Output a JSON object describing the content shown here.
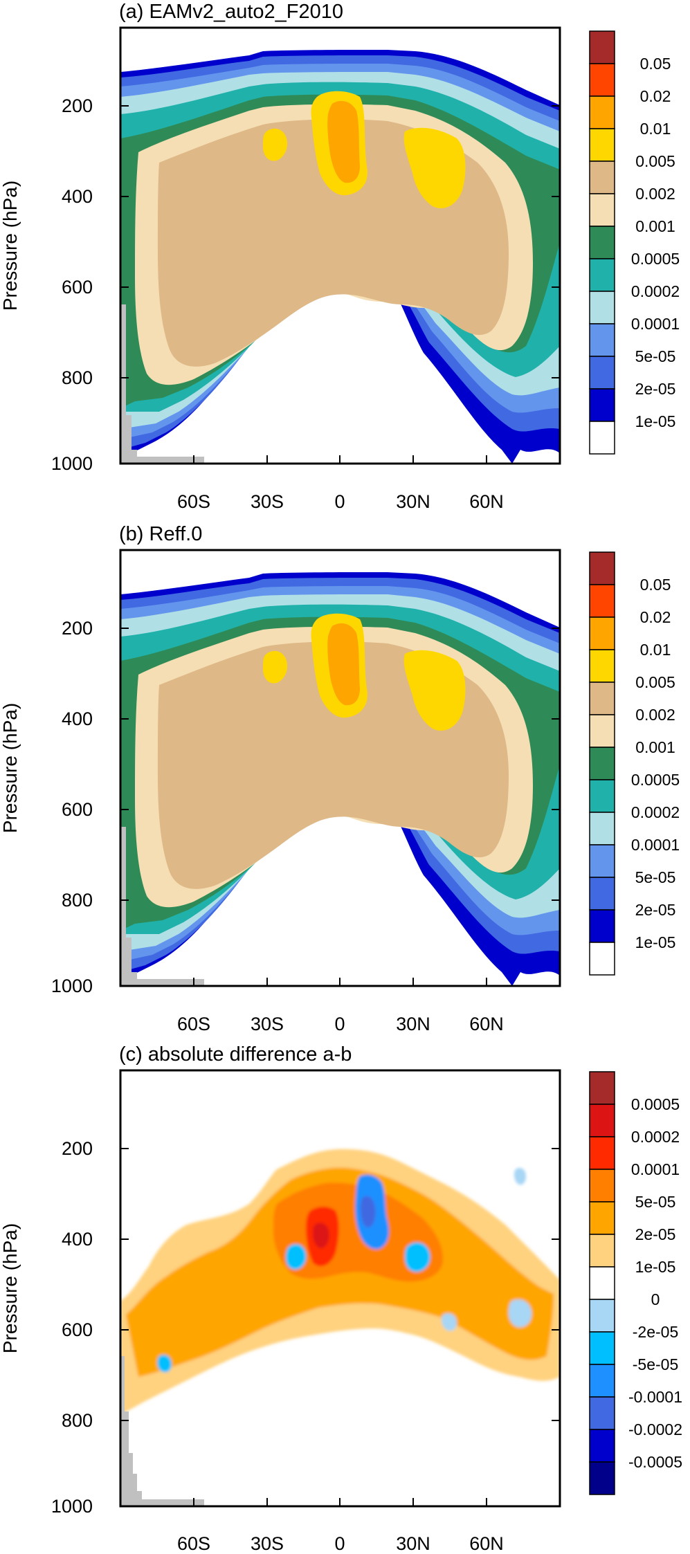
{
  "chart_data": [
    {
      "type": "contour",
      "title": "(a) EAMv2_auto2_F2010",
      "ylabel": "Pressure (hPa)",
      "y_ticks": [
        "200",
        "400",
        "600",
        "800",
        "1000"
      ],
      "x_ticks": [
        "60S",
        "30S",
        "0",
        "30N",
        "60N"
      ],
      "xlim": [
        -90,
        90
      ],
      "ylim": [
        1000,
        50
      ],
      "colorbar_labels": [
        "0.05",
        "0.02",
        "0.01",
        "0.005",
        "0.002",
        "0.001",
        "0.0005",
        "0.0002",
        "0.0001",
        "5e-05",
        "2e-05",
        "1e-05"
      ],
      "colorbar_colors": [
        "#a52a2a",
        "#ff4500",
        "#ffa500",
        "#ffd700",
        "#deb887",
        "#f5deb3",
        "#2e8b57",
        "#20b2aa",
        "#b0e0e6",
        "#6495ed",
        "#4169e1",
        "#0000cd",
        "#ffffff"
      ]
    },
    {
      "type": "contour",
      "title": "(b) Reff.0",
      "ylabel": "Pressure (hPa)",
      "y_ticks": [
        "200",
        "400",
        "600",
        "800",
        "1000"
      ],
      "x_ticks": [
        "60S",
        "30S",
        "0",
        "30N",
        "60N"
      ],
      "xlim": [
        -90,
        90
      ],
      "ylim": [
        1000,
        50
      ],
      "colorbar_labels": [
        "0.05",
        "0.02",
        "0.01",
        "0.005",
        "0.002",
        "0.001",
        "0.0005",
        "0.0002",
        "0.0001",
        "5e-05",
        "2e-05",
        "1e-05"
      ],
      "colorbar_colors": [
        "#a52a2a",
        "#ff4500",
        "#ffa500",
        "#ffd700",
        "#deb887",
        "#f5deb3",
        "#2e8b57",
        "#20b2aa",
        "#b0e0e6",
        "#6495ed",
        "#4169e1",
        "#0000cd",
        "#ffffff"
      ]
    },
    {
      "type": "contour",
      "title": "(c) absolute difference a-b",
      "ylabel": "Pressure (hPa)",
      "y_ticks": [
        "200",
        "400",
        "600",
        "800",
        "1000"
      ],
      "x_ticks": [
        "60S",
        "30S",
        "0",
        "30N",
        "60N"
      ],
      "xlim": [
        -90,
        90
      ],
      "ylim": [
        1000,
        50
      ],
      "colorbar_labels": [
        "0.0005",
        "0.0002",
        "0.0001",
        "5e-05",
        "2e-05",
        "1e-05",
        "0",
        "-2e-05",
        "-5e-05",
        "-0.0001",
        "-0.0002",
        "-0.0005"
      ],
      "colorbar_colors": [
        "#a52a2a",
        "#dc1414",
        "#ff2a00",
        "#ff7f00",
        "#ffa500",
        "#ffd27f",
        "#ffffff",
        "#a8d6f5",
        "#00bfff",
        "#1e90ff",
        "#4169e1",
        "#0000cd",
        "#00008b"
      ]
    }
  ]
}
